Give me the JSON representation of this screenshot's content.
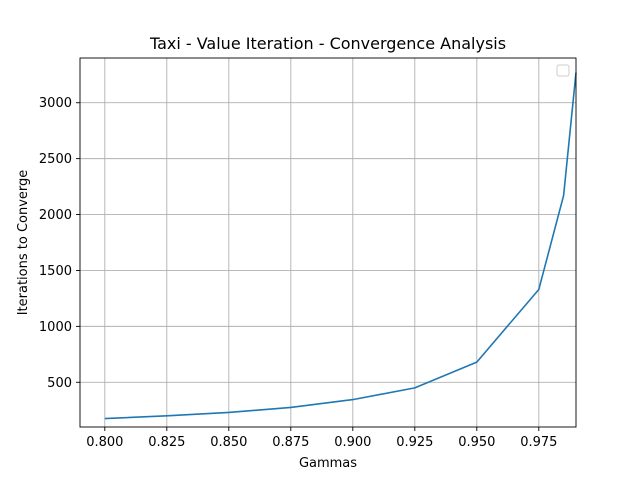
{
  "chart_data": {
    "type": "line",
    "title": "Taxi - Value Iteration - Convergence Analysis",
    "xlabel": "Gammas",
    "ylabel": "Iterations to Converge",
    "xlim": [
      0.79,
      0.99
    ],
    "ylim": [
      100,
      3400
    ],
    "xticks": [
      0.8,
      0.825,
      0.85,
      0.875,
      0.9,
      0.925,
      0.95,
      0.975
    ],
    "xtick_labels": [
      "0.800",
      "0.825",
      "0.850",
      "0.875",
      "0.900",
      "0.925",
      "0.950",
      "0.975"
    ],
    "yticks": [
      500,
      1000,
      1500,
      2000,
      2500,
      3000
    ],
    "ytick_labels": [
      "500",
      "1000",
      "1500",
      "2000",
      "2500",
      "3000"
    ],
    "grid": true,
    "legend": "top-right, empty",
    "colors": {
      "line": "#1f77b4",
      "grid": "#b0b0b0"
    },
    "series": [
      {
        "x": [
          0.8,
          0.825,
          0.85,
          0.875,
          0.9,
          0.925,
          0.95,
          0.975,
          0.985,
          0.99
        ],
        "values": [
          175,
          200,
          230,
          275,
          345,
          450,
          680,
          1330,
          2170,
          3270
        ]
      }
    ]
  }
}
